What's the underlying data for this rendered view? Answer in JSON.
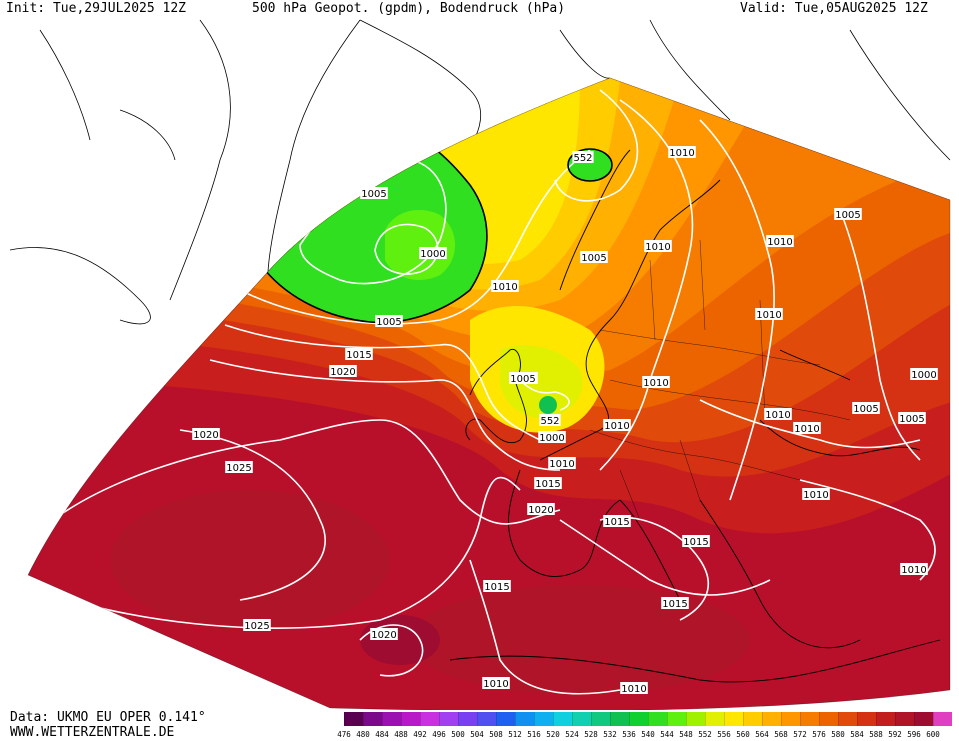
{
  "header": {
    "init": "Init: Tue,29JUL2025 12Z",
    "title": "500 hPa Geopot. (gpdm), Bodendruck (hPa)",
    "valid": "Valid: Tue,05AUG2025 12Z"
  },
  "footer": {
    "data_source": "Data: UKMO EU OPER 0.141°",
    "website": "WWW.WETTERZENTRALE.DE"
  },
  "legend": {
    "values": [
      "476",
      "480",
      "484",
      "488",
      "492",
      "496",
      "500",
      "504",
      "508",
      "512",
      "516",
      "520",
      "524",
      "528",
      "532",
      "536",
      "540",
      "544",
      "548",
      "552",
      "556",
      "560",
      "564",
      "568",
      "572",
      "576",
      "580",
      "584",
      "588",
      "592",
      "596",
      "600"
    ],
    "colors": [
      "#5a0050",
      "#7a0a8a",
      "#9a10b0",
      "#b818c8",
      "#c830e0",
      "#a040f0",
      "#7840f0",
      "#5050f0",
      "#2060f0",
      "#1090f0",
      "#10b0f0",
      "#10d0e0",
      "#10d0b0",
      "#10c880",
      "#10c050",
      "#10d030",
      "#30e020",
      "#60f010",
      "#a0f000",
      "#e0f000",
      "#ffe600",
      "#ffcc00",
      "#ffb000",
      "#ff9600",
      "#f57c00",
      "#ec6400",
      "#e04a0a",
      "#d43212",
      "#c21e1e",
      "#b01428",
      "#9e0c32",
      "#e040c0"
    ]
  },
  "isobar_labels": [
    "1005",
    "1000",
    "1005",
    "1010",
    "1015",
    "1020",
    "1020",
    "1025",
    "1025",
    "1020",
    "552",
    "552",
    "1010",
    "1005",
    "1010",
    "1010",
    "1005",
    "1000",
    "1005",
    "1010",
    "1015",
    "1020",
    "1015",
    "1015",
    "1015",
    "1010",
    "1010",
    "1010",
    "1010",
    "1010",
    "1010",
    "1005",
    "1005",
    "1000",
    "1010",
    "1010",
    "1015",
    "1010",
    "1005"
  ]
}
